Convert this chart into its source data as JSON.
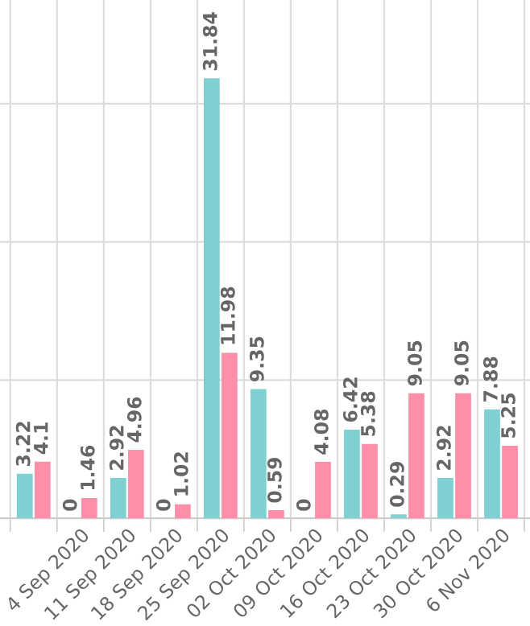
{
  "chart_data": {
    "type": "bar",
    "categories": [
      null,
      "4 Sep 2020",
      "11 Sep 2020",
      "18 Sep 2020",
      "25 Sep 2020",
      "02 Oct 2020",
      "09 Oct 2020",
      "16 Oct 2020",
      "23 Oct 2020",
      "30 Oct 2020",
      "6 Nov 2020"
    ],
    "series": [
      {
        "color": "#7fd1d1",
        "values": [
          3.22,
          0,
          2.92,
          0,
          31.84,
          9.35,
          0,
          6.42,
          0.29,
          2.92,
          7.88
        ]
      },
      {
        "color": "#ff8fa8",
        "values": [
          4.1,
          1.46,
          4.96,
          1.02,
          11.98,
          0.59,
          4.08,
          5.38,
          9.05,
          9.05,
          5.25
        ]
      }
    ],
    "ylim": [
      0,
      37.5
    ],
    "yticks": [
      {
        "value": 0,
        "label": null
      },
      {
        "value": 10,
        "label": null
      },
      {
        "value": 20,
        "label": null
      },
      {
        "value": 30,
        "label": null
      }
    ],
    "tick_labels": "x",
    "grid": true,
    "data_labels": true
  }
}
